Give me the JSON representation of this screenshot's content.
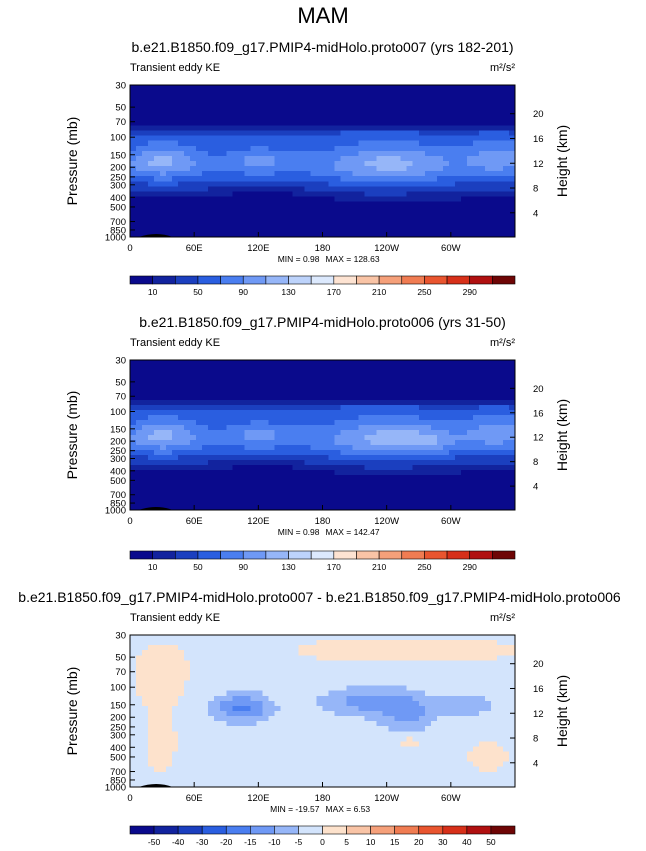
{
  "figure": {
    "title": "MAM",
    "left_axis_label": "Pressure (mb)",
    "right_axis_label": "Height (km)",
    "pressure_ticks": [
      "30",
      "50",
      "70",
      "100",
      "150",
      "200",
      "250",
      "300",
      "400",
      "500",
      "700",
      "850",
      "1000"
    ],
    "height_ticks": [
      "20",
      "16",
      "12",
      "8",
      "4"
    ],
    "lon_ticks": [
      "0",
      "60E",
      "120E",
      "180",
      "120W",
      "60W"
    ]
  },
  "chart_data": [
    {
      "type": "heatmap",
      "title": "b.e21.B1850.f09_g17.PMIP4-midHolo.proto007 (yrs 182-201)",
      "variable": "Transient eddy KE",
      "units": "m²/s²",
      "min_text": "MIN =   0.98",
      "max_text": "MAX = 128.63",
      "min": 0.98,
      "max": 128.63,
      "colorbar_labels": [
        "10",
        "50",
        "90",
        "130",
        "170",
        "210",
        "250",
        "290"
      ],
      "colorbar_colors": [
        "#0a0a8c",
        "#12239e",
        "#1b3fbf",
        "#2a5ee0",
        "#4a7ef0",
        "#6f99f5",
        "#96b6f8",
        "#bdd3fb",
        "#dce9fd",
        "#fde3d2",
        "#f9c4a6",
        "#f5a07a",
        "#f07c52",
        "#e9552f",
        "#d73019",
        "#b01010",
        "#6e0505"
      ],
      "ylim_pressure": [
        1000,
        30
      ],
      "x_range_deg": [
        0,
        360
      ],
      "x_ticks_deg": [
        0,
        60,
        120,
        180,
        240,
        300
      ]
    },
    {
      "type": "heatmap",
      "title": "b.e21.B1850.f09_g17.PMIP4-midHolo.proto006 (yrs 31-50)",
      "variable": "Transient eddy KE",
      "units": "m²/s²",
      "min_text": "MIN =   0.98",
      "max_text": "MAX = 142.47",
      "min": 0.98,
      "max": 142.47,
      "colorbar_labels": [
        "10",
        "50",
        "90",
        "130",
        "170",
        "210",
        "250",
        "290"
      ],
      "colorbar_colors": [
        "#0a0a8c",
        "#12239e",
        "#1b3fbf",
        "#2a5ee0",
        "#4a7ef0",
        "#6f99f5",
        "#96b6f8",
        "#bdd3fb",
        "#dce9fd",
        "#fde3d2",
        "#f9c4a6",
        "#f5a07a",
        "#f07c52",
        "#e9552f",
        "#d73019",
        "#b01010",
        "#6e0505"
      ],
      "ylim_pressure": [
        1000,
        30
      ],
      "x_range_deg": [
        0,
        360
      ],
      "x_ticks_deg": [
        0,
        60,
        120,
        180,
        240,
        300
      ]
    },
    {
      "type": "heatmap",
      "title": "b.e21.B1850.f09_g17.PMIP4-midHolo.proto007 - b.e21.B1850.f09_g17.PMIP4-midHolo.proto006",
      "variable": "Transient eddy KE",
      "units": "m²/s²",
      "min_text": "MIN = -19.57",
      "max_text": "MAX =   6.53",
      "min": -19.57,
      "max": 6.53,
      "colorbar_labels": [
        "-50",
        "-40",
        "-30",
        "-20",
        "-15",
        "-10",
        "-5",
        "0",
        "5",
        "10",
        "15",
        "20",
        "30",
        "40",
        "50"
      ],
      "colorbar_colors": [
        "#0a0a8c",
        "#12239e",
        "#1b3fbf",
        "#2a5ee0",
        "#4a7ef0",
        "#6f99f5",
        "#96b6f8",
        "#d3e4fc",
        "#fde2cc",
        "#f9c4a6",
        "#f5a07a",
        "#f07c52",
        "#e9552f",
        "#d73019",
        "#b01010",
        "#6e0505"
      ],
      "ylim_pressure": [
        1000,
        30
      ],
      "x_range_deg": [
        0,
        360
      ],
      "x_ticks_deg": [
        0,
        60,
        120,
        180,
        240,
        300
      ]
    }
  ]
}
